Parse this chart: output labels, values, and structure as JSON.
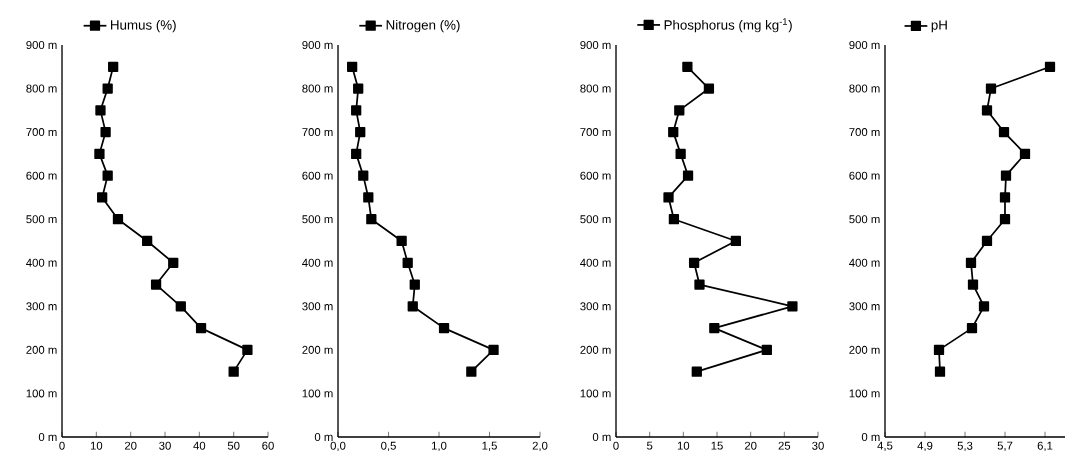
{
  "chart_data": [
    {
      "type": "line",
      "marker": "square",
      "line_style": "solid",
      "legend": "top left",
      "series": [
        {
          "name": "Humus (%)",
          "color": "#000000",
          "x": [
            50,
            54,
            40.5,
            34.6,
            27.4,
            32.4,
            24.8,
            16.3,
            11.7,
            13.3,
            10.9,
            12.7,
            11.2,
            13.3,
            14.9
          ],
          "values": [
            150,
            200,
            250,
            300,
            350,
            400,
            450,
            500,
            550,
            600,
            650,
            700,
            750,
            800,
            850
          ]
        }
      ],
      "xlim": [
        0,
        60
      ],
      "xticks": [
        0,
        10,
        20,
        30,
        40,
        50,
        60
      ],
      "ylim": [
        0,
        900
      ],
      "yticks": [
        {
          "value": 0,
          "label": "0 m"
        },
        {
          "value": 100,
          "label": "100 m"
        },
        {
          "value": 200,
          "label": "200 m"
        },
        {
          "value": 300,
          "label": "300 m"
        },
        {
          "value": 400,
          "label": "400 m"
        },
        {
          "value": 500,
          "label": "500 m"
        },
        {
          "value": 600,
          "label": "600 m"
        },
        {
          "value": 700,
          "label": "700 m"
        },
        {
          "value": 800,
          "label": "800 m"
        },
        {
          "value": 900,
          "label": "900 m"
        }
      ]
    },
    {
      "type": "line",
      "marker": "square",
      "line_style": "solid",
      "legend": "top left",
      "series": [
        {
          "name": "Nitrogen (%)",
          "color": "#000000",
          "x": [
            1.32,
            1.54,
            1.05,
            0.74,
            0.76,
            0.69,
            0.63,
            0.33,
            0.3,
            0.25,
            0.18,
            0.22,
            0.18,
            0.2,
            0.14
          ],
          "values": [
            150,
            200,
            250,
            300,
            350,
            400,
            450,
            500,
            550,
            600,
            650,
            700,
            750,
            800,
            850
          ]
        }
      ],
      "xlim": [
        0,
        2
      ],
      "xticks": [
        {
          "value": 0,
          "label": "0,0"
        },
        {
          "value": 0.5,
          "label": "0,5"
        },
        {
          "value": 1,
          "label": "1,0"
        },
        {
          "value": 1.5,
          "label": "1,5"
        },
        {
          "value": 2,
          "label": "2,0"
        }
      ],
      "ylim": [
        0,
        900
      ],
      "yticks": [
        {
          "value": 0,
          "label": "0 m"
        },
        {
          "value": 100,
          "label": "100 m"
        },
        {
          "value": 200,
          "label": "200 m"
        },
        {
          "value": 300,
          "label": "300 m"
        },
        {
          "value": 400,
          "label": "400 m"
        },
        {
          "value": 500,
          "label": "500 m"
        },
        {
          "value": 600,
          "label": "600 m"
        },
        {
          "value": 700,
          "label": "700 m"
        },
        {
          "value": 800,
          "label": "800 m"
        },
        {
          "value": 900,
          "label": "900 m"
        }
      ]
    },
    {
      "type": "line",
      "marker": "square",
      "line_style": "solid",
      "legend": "top left",
      "series": [
        {
          "name": "Phosphorus (mg kg$^{-1}$)",
          "color": "#000000",
          "x": [
            12.0,
            22.4,
            14.6,
            26.2,
            12.4,
            11.6,
            17.8,
            8.6,
            7.8,
            10.7,
            9.6,
            8.5,
            9.4,
            13.8,
            10.6
          ],
          "values": [
            150,
            200,
            250,
            300,
            350,
            400,
            450,
            500,
            550,
            600,
            650,
            700,
            750,
            800,
            850
          ]
        }
      ],
      "xlim": [
        0,
        30
      ],
      "xticks": [
        0,
        5,
        10,
        15,
        20,
        25,
        30
      ],
      "ylim": [
        0,
        900
      ],
      "yticks": [
        {
          "value": 0,
          "label": "0 m"
        },
        {
          "value": 100,
          "label": "100 m"
        },
        {
          "value": 200,
          "label": "200 m"
        },
        {
          "value": 300,
          "label": "300 m"
        },
        {
          "value": 400,
          "label": "400 m"
        },
        {
          "value": 500,
          "label": "500 m"
        },
        {
          "value": 600,
          "label": "600 m"
        },
        {
          "value": 700,
          "label": "700 m"
        },
        {
          "value": 800,
          "label": "800 m"
        },
        {
          "value": 900,
          "label": "900 m"
        }
      ]
    },
    {
      "type": "line",
      "marker": "square",
      "line_style": "solid",
      "legend": "top left",
      "series": [
        {
          "name": "pH",
          "color": "#000000",
          "x": [
            5.05,
            5.04,
            5.37,
            5.49,
            5.38,
            5.36,
            5.52,
            5.7,
            5.7,
            5.71,
            5.9,
            5.69,
            5.52,
            5.56,
            6.15
          ],
          "values": [
            150,
            200,
            250,
            300,
            350,
            400,
            450,
            500,
            550,
            600,
            650,
            700,
            750,
            800,
            850
          ]
        }
      ],
      "xlim": [
        4.5,
        6.3
      ],
      "xticks": [
        {
          "value": 4.5,
          "label": "4,5"
        },
        {
          "value": 4.9,
          "label": "4,9"
        },
        {
          "value": 5.3,
          "label": "5,3"
        },
        {
          "value": 5.7,
          "label": "5,7"
        },
        {
          "value": 6.1,
          "label": "6,1"
        }
      ],
      "ylim": [
        0,
        900
      ],
      "yticks": [
        {
          "value": 0,
          "label": "0 m"
        },
        {
          "value": 100,
          "label": "100 m"
        },
        {
          "value": 200,
          "label": "200 m"
        },
        {
          "value": 300,
          "label": "300 m"
        },
        {
          "value": 400,
          "label": "400 m"
        },
        {
          "value": 500,
          "label": "500 m"
        },
        {
          "value": 600,
          "label": "600 m"
        },
        {
          "value": 700,
          "label": "700 m"
        },
        {
          "value": 800,
          "label": "800 m"
        },
        {
          "value": 900,
          "label": "900 m"
        }
      ]
    }
  ]
}
